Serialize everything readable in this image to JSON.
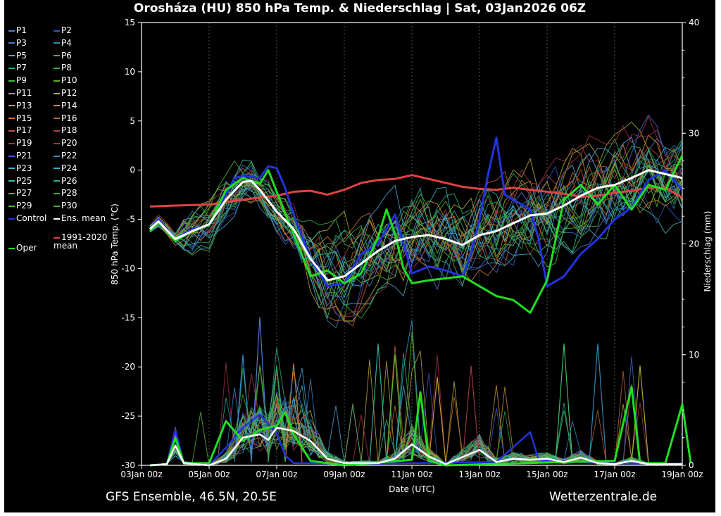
{
  "title": "Orosháza  (HU)  850 hPa Temp. & Niederschlag | Sat, 03Jan2026 06Z",
  "footer": {
    "left": "GFS Ensemble, 46.5N, 20.5E",
    "right": "Wetterzentrale.de"
  },
  "colors": {
    "background": "#000000",
    "control": "#2233dd",
    "ens_mean": "#ffffff",
    "climate": "#dd4444",
    "oper": "#22dd22"
  },
  "legend": {
    "members": [
      {
        "label": "P1",
        "color": "#5577cc"
      },
      {
        "label": "P2",
        "color": "#3355bb"
      },
      {
        "label": "P3",
        "color": "#4477cc"
      },
      {
        "label": "P4",
        "color": "#3388bb"
      },
      {
        "label": "P5",
        "color": "#44aacc"
      },
      {
        "label": "P6",
        "color": "#33aa99"
      },
      {
        "label": "P7",
        "color": "#33aa88"
      },
      {
        "label": "P8",
        "color": "#33aa55"
      },
      {
        "label": "P9",
        "color": "#44bb44"
      },
      {
        "label": "P10",
        "color": "#66aa22"
      },
      {
        "label": "P11",
        "color": "#aaaa33"
      },
      {
        "label": "P12",
        "color": "#bbaa33"
      },
      {
        "label": "P13",
        "color": "#cc9933"
      },
      {
        "label": "P14",
        "color": "#cc8833"
      },
      {
        "label": "P15",
        "color": "#cc7733"
      },
      {
        "label": "P16",
        "color": "#bb6633"
      },
      {
        "label": "P17",
        "color": "#bb5533"
      },
      {
        "label": "P18",
        "color": "#aa4433"
      },
      {
        "label": "P19",
        "color": "#aa3344"
      },
      {
        "label": "P20",
        "color": "#993344"
      },
      {
        "label": "P21",
        "color": "#4466cc"
      },
      {
        "label": "P22",
        "color": "#3388cc"
      },
      {
        "label": "P23",
        "color": "#44aadd"
      },
      {
        "label": "P24",
        "color": "#33aacc"
      },
      {
        "label": "P25",
        "color": "#33bbaa"
      },
      {
        "label": "P26",
        "color": "#33aa88"
      },
      {
        "label": "P27",
        "color": "#44bb66"
      },
      {
        "label": "P28",
        "color": "#33aa55"
      },
      {
        "label": "P29",
        "color": "#55bb33"
      },
      {
        "label": "P30",
        "color": "#44aa33"
      }
    ],
    "control": "Control",
    "ens_mean": "Ens. mean",
    "climate": "1991-2020 mean",
    "oper": "Oper"
  },
  "chart_data": {
    "type": "line",
    "title": "Orosháza  (HU)  850 hPa Temp. & Niederschlag | Sat, 03Jan2026 06Z",
    "xlabel": "Date (UTC)",
    "ylabel": "850 hPa Temp. (°C)",
    "y2label": "Niederschlag (mm)",
    "xlim": [
      0,
      384
    ],
    "ylim": [
      -30,
      15
    ],
    "y2lim": [
      0,
      40
    ],
    "x_unit": "hours since 03Jan 00z",
    "x_ticks": [
      {
        "h": 0,
        "label": "03Jan 00z"
      },
      {
        "h": 48,
        "label": "05Jan 00z"
      },
      {
        "h": 96,
        "label": "07Jan 00z"
      },
      {
        "h": 144,
        "label": "09Jan 00z"
      },
      {
        "h": 192,
        "label": "11Jan 00z"
      },
      {
        "h": 240,
        "label": "13Jan 00z"
      },
      {
        "h": 288,
        "label": "15Jan 00z"
      },
      {
        "h": 336,
        "label": "17Jan 00z"
      },
      {
        "h": 384,
        "label": "19Jan 00z"
      }
    ],
    "y_ticks": [
      15,
      10,
      5,
      0,
      -5,
      -10,
      -15,
      -20,
      -25,
      -30
    ],
    "y2_ticks": [
      40,
      30,
      20,
      10,
      0
    ],
    "temperature": {
      "ens_mean": [
        [
          6,
          -6
        ],
        [
          12,
          -5.2
        ],
        [
          24,
          -7
        ],
        [
          36,
          -6.2
        ],
        [
          48,
          -5.5
        ],
        [
          60,
          -3
        ],
        [
          72,
          -1.2
        ],
        [
          78,
          -1.1
        ],
        [
          84,
          -2
        ],
        [
          96,
          -4.2
        ],
        [
          108,
          -6
        ],
        [
          120,
          -9
        ],
        [
          132,
          -11.2
        ],
        [
          144,
          -10.8
        ],
        [
          156,
          -9.5
        ],
        [
          168,
          -8.2
        ],
        [
          180,
          -7.2
        ],
        [
          192,
          -6.8
        ],
        [
          204,
          -6.6
        ],
        [
          216,
          -7
        ],
        [
          228,
          -7.6
        ],
        [
          240,
          -6.6
        ],
        [
          252,
          -6.2
        ],
        [
          264,
          -5.4
        ],
        [
          276,
          -4.6
        ],
        [
          288,
          -4.4
        ],
        [
          300,
          -3.6
        ],
        [
          312,
          -2.6
        ],
        [
          324,
          -1.8
        ],
        [
          336,
          -1.5
        ],
        [
          348,
          -0.8
        ],
        [
          360,
          0
        ],
        [
          372,
          -0.4
        ],
        [
          384,
          -0.8
        ]
      ],
      "control": [
        [
          6,
          -6
        ],
        [
          12,
          -5
        ],
        [
          24,
          -7
        ],
        [
          36,
          -6
        ],
        [
          48,
          -5.6
        ],
        [
          60,
          -2.5
        ],
        [
          66,
          -0.8
        ],
        [
          72,
          -0.6
        ],
        [
          84,
          -0.8
        ],
        [
          90,
          0.4
        ],
        [
          96,
          0.2
        ],
        [
          102,
          -1.8
        ],
        [
          108,
          -4.5
        ],
        [
          120,
          -9
        ],
        [
          132,
          -11.8
        ],
        [
          144,
          -11.5
        ],
        [
          156,
          -8.5
        ],
        [
          168,
          -7.5
        ],
        [
          180,
          -4.5
        ],
        [
          186,
          -7.5
        ],
        [
          192,
          -10.5
        ],
        [
          204,
          -9.8
        ],
        [
          216,
          -10.2
        ],
        [
          228,
          -10.8
        ],
        [
          234,
          -8.5
        ],
        [
          240,
          -5
        ],
        [
          246,
          -0.5
        ],
        [
          252,
          3.3
        ],
        [
          258,
          -2.5
        ],
        [
          264,
          -3
        ],
        [
          276,
          -4
        ],
        [
          282,
          -7
        ],
        [
          288,
          -11.8
        ],
        [
          300,
          -10.8
        ],
        [
          312,
          -8.5
        ],
        [
          324,
          -7
        ],
        [
          336,
          -5
        ],
        [
          348,
          -3.8
        ],
        [
          360,
          -1
        ],
        [
          372,
          0
        ],
        [
          384,
          -2
        ]
      ],
      "oper": [
        [
          6,
          -6.2
        ],
        [
          12,
          -5.3
        ],
        [
          24,
          -7.2
        ],
        [
          36,
          -6.2
        ],
        [
          48,
          -5.6
        ],
        [
          60,
          -2
        ],
        [
          72,
          -0.8
        ],
        [
          84,
          -1.4
        ],
        [
          90,
          0
        ],
        [
          96,
          -2.2
        ],
        [
          108,
          -6.5
        ],
        [
          120,
          -10.8
        ],
        [
          132,
          -10.2
        ],
        [
          144,
          -11.5
        ],
        [
          156,
          -10.5
        ],
        [
          168,
          -6.8
        ],
        [
          174,
          -4
        ],
        [
          180,
          -6.5
        ],
        [
          186,
          -10
        ],
        [
          192,
          -11.5
        ],
        [
          204,
          -11.2
        ],
        [
          216,
          -11
        ],
        [
          228,
          -10.8
        ],
        [
          240,
          -11.8
        ],
        [
          252,
          -12.8
        ],
        [
          264,
          -13.2
        ],
        [
          276,
          -14.5
        ],
        [
          288,
          -11.2
        ],
        [
          300,
          -3
        ],
        [
          312,
          -1.5
        ],
        [
          324,
          -3.5
        ],
        [
          336,
          -1.5
        ],
        [
          348,
          -4
        ],
        [
          360,
          -1.5
        ],
        [
          372,
          -2
        ],
        [
          384,
          1.5
        ]
      ],
      "climate": [
        [
          6,
          -3.7
        ],
        [
          24,
          -3.6
        ],
        [
          48,
          -3.5
        ],
        [
          72,
          -3
        ],
        [
          96,
          -2.6
        ],
        [
          108,
          -2.2
        ],
        [
          120,
          -2.1
        ],
        [
          132,
          -2.5
        ],
        [
          144,
          -2
        ],
        [
          156,
          -1.3
        ],
        [
          168,
          -1
        ],
        [
          180,
          -0.9
        ],
        [
          192,
          -0.5
        ],
        [
          204,
          -0.9
        ],
        [
          216,
          -1.3
        ],
        [
          228,
          -1.7
        ],
        [
          240,
          -1.9
        ],
        [
          252,
          -2
        ],
        [
          264,
          -1.8
        ],
        [
          276,
          -2
        ],
        [
          288,
          -2.2
        ],
        [
          300,
          -2.4
        ],
        [
          312,
          -2.7
        ],
        [
          324,
          -2.6
        ],
        [
          336,
          -2.3
        ],
        [
          348,
          -2.1
        ],
        [
          360,
          -1.8
        ],
        [
          372,
          -1.8
        ],
        [
          384,
          -2.8
        ]
      ]
    },
    "precipitation_mm": {
      "ens_mean": [
        [
          6,
          0
        ],
        [
          18,
          0.1
        ],
        [
          24,
          1.8
        ],
        [
          30,
          0.2
        ],
        [
          48,
          0
        ],
        [
          60,
          0.6
        ],
        [
          72,
          2.5
        ],
        [
          84,
          2.8
        ],
        [
          90,
          2.3
        ],
        [
          96,
          3.4
        ],
        [
          108,
          3.1
        ],
        [
          120,
          2.2
        ],
        [
          132,
          0.6
        ],
        [
          144,
          0.2
        ],
        [
          168,
          0.2
        ],
        [
          180,
          0.6
        ],
        [
          192,
          1.9
        ],
        [
          204,
          0.8
        ],
        [
          216,
          0.1
        ],
        [
          240,
          1.4
        ],
        [
          252,
          0.3
        ],
        [
          264,
          0.6
        ],
        [
          276,
          0.5
        ],
        [
          288,
          0.6
        ],
        [
          300,
          0.3
        ],
        [
          312,
          0.7
        ],
        [
          324,
          0.2
        ],
        [
          336,
          0.1
        ],
        [
          348,
          0.4
        ],
        [
          360,
          0.1
        ],
        [
          384,
          0.1
        ]
      ],
      "control": [
        [
          6,
          0
        ],
        [
          18,
          0.1
        ],
        [
          24,
          3.2
        ],
        [
          30,
          0.2
        ],
        [
          48,
          0
        ],
        [
          60,
          1.6
        ],
        [
          72,
          3.4
        ],
        [
          84,
          4.6
        ],
        [
          96,
          2.9
        ],
        [
          102,
          0.9
        ],
        [
          108,
          0.2
        ],
        [
          120,
          0.2
        ],
        [
          144,
          0.1
        ],
        [
          192,
          0.2
        ],
        [
          252,
          0.3
        ],
        [
          276,
          3
        ],
        [
          282,
          0.5
        ],
        [
          324,
          0.2
        ],
        [
          384,
          0.1
        ]
      ],
      "oper": [
        [
          6,
          0
        ],
        [
          18,
          0.1
        ],
        [
          24,
          2.5
        ],
        [
          30,
          0.2
        ],
        [
          48,
          0.2
        ],
        [
          60,
          4
        ],
        [
          72,
          2.2
        ],
        [
          84,
          3.2
        ],
        [
          96,
          3.6
        ],
        [
          102,
          4.8
        ],
        [
          108,
          2.8
        ],
        [
          120,
          0.4
        ],
        [
          144,
          0
        ],
        [
          192,
          0.5
        ],
        [
          198,
          6.6
        ],
        [
          204,
          0.4
        ],
        [
          216,
          0
        ],
        [
          300,
          0.3
        ],
        [
          336,
          0.4
        ],
        [
          348,
          7.1
        ],
        [
          354,
          0.2
        ],
        [
          372,
          0.2
        ],
        [
          384,
          5.5
        ],
        [
          390,
          0.2
        ]
      ],
      "peaks": [
        [
          84,
          13.4
        ],
        [
          96,
          9
        ],
        [
          108,
          9.2
        ],
        [
          72,
          10
        ],
        [
          180,
          10
        ],
        [
          168,
          11
        ],
        [
          210,
          8
        ],
        [
          234,
          9
        ],
        [
          300,
          11
        ],
        [
          324,
          11
        ],
        [
          354,
          9
        ]
      ]
    },
    "series": [
      {
        "name": "Control",
        "color": "#2233dd"
      },
      {
        "name": "Ens. mean",
        "color": "#ffffff"
      },
      {
        "name": "1991-2020 mean",
        "color": "#dd4444"
      },
      {
        "name": "Oper",
        "color": "#22dd22"
      }
    ]
  }
}
